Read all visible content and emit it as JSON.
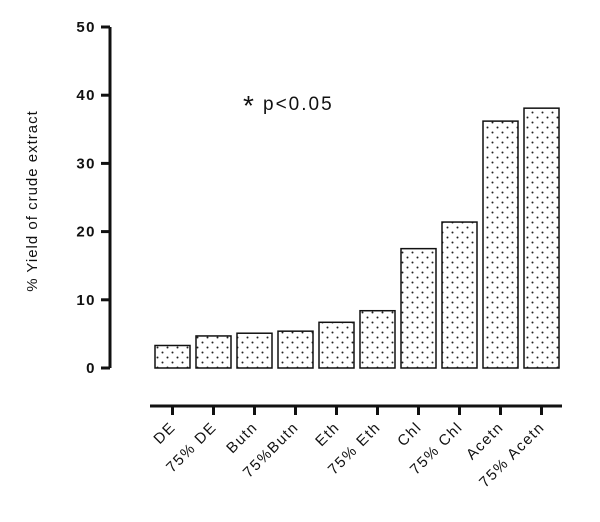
{
  "chart_data": {
    "type": "bar",
    "title": "",
    "xlabel": "",
    "ylabel": "% Yield of crude extract",
    "ylim": [
      0,
      50
    ],
    "yticks": [
      0,
      10,
      20,
      30,
      40,
      50
    ],
    "grid": false,
    "legend": "none",
    "categories": [
      "DE",
      "75% DE",
      "Butn",
      "75%Butn",
      "Eth",
      "75% Eth",
      "Chl",
      "75% Chl",
      "Acetn",
      "75% Acetn"
    ],
    "values": [
      3.3,
      4.7,
      5.1,
      5.4,
      6.7,
      8.4,
      17.5,
      21.4,
      36.2,
      38.1
    ],
    "annotation": {
      "star": "*",
      "text": "p<0.05"
    },
    "bar_fill": "#ffffff",
    "bar_pattern": "dotted",
    "axis_color": "#111111"
  }
}
